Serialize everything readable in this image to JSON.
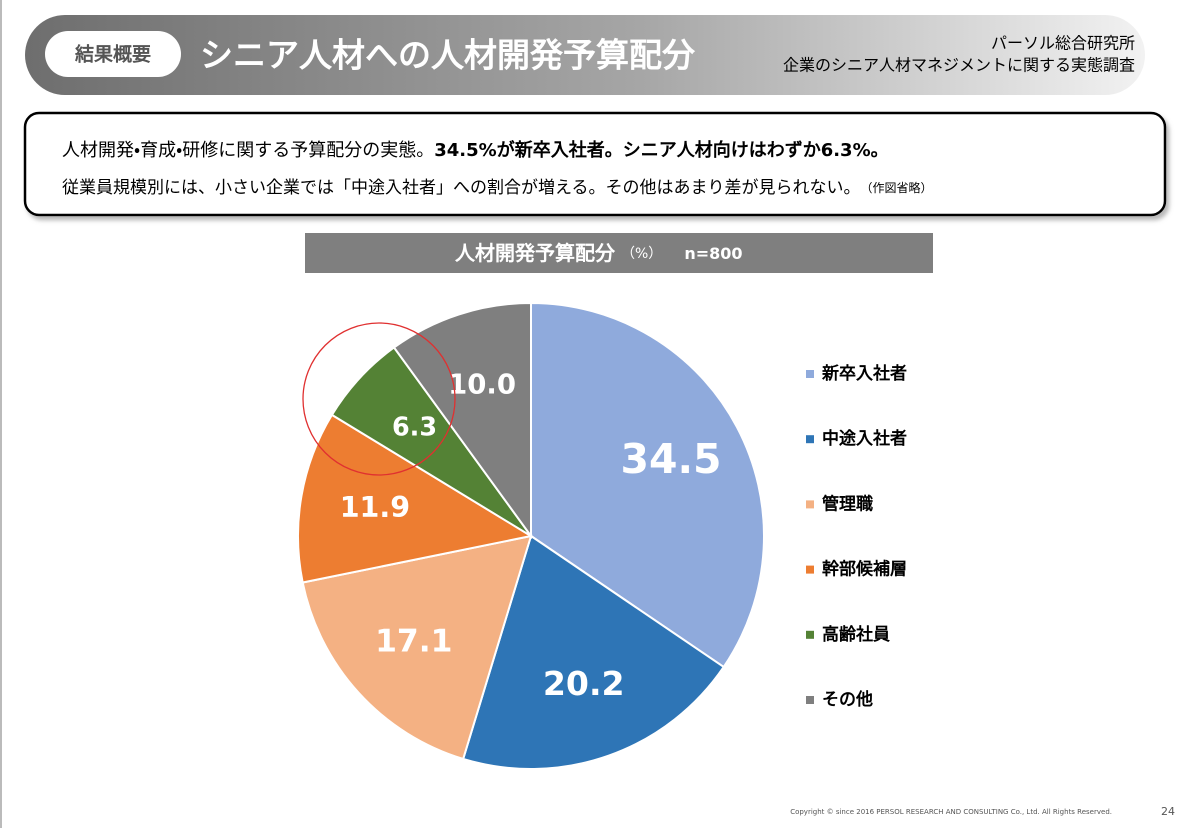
{
  "header": {
    "tag": "結果概要",
    "title": "シニア人材への人材開発予算配分",
    "source": [
      "パーソル総合研究所",
      "企業のシニア人材マネジメントに関する実態調査"
    ]
  },
  "summary": {
    "line1": "人材開発・育成・研修に関する予算配分の実態。",
    "line1_bold": "34.5%が新卒入社者。シニア人材向けはわずか6.3%。",
    "line2": "従業員規模別には、小さい企業では「中途入社者」への割合が増える。その他はあまり差が見られない。",
    "line2_note": "（作図省略）"
  },
  "chart_data": {
    "type": "pie",
    "title": "人材開発予算配分",
    "unit": "（%）",
    "note": "n=800",
    "categories": [
      "新卒入社者",
      "中途入社者",
      "管理職",
      "幹部候補層",
      "高齢社員",
      "その他"
    ],
    "values": [
      34.5,
      20.2,
      17.1,
      11.9,
      6.3,
      10.0
    ],
    "value_labels": [
      "34.5",
      "20.2",
      "17.1",
      "11.9",
      "6.3",
      "10.0"
    ],
    "colors": [
      "#8faadc",
      "#2e75b6",
      "#f4b183",
      "#ed7d31",
      "#548235",
      "#7f7f7f"
    ],
    "legend": "right"
  },
  "footer": {
    "copyright": "Copyright © since 2016 PERSOL RESEARCH AND CONSULTING Co.,  Ltd. All Rights Reserved.",
    "page": "24"
  }
}
